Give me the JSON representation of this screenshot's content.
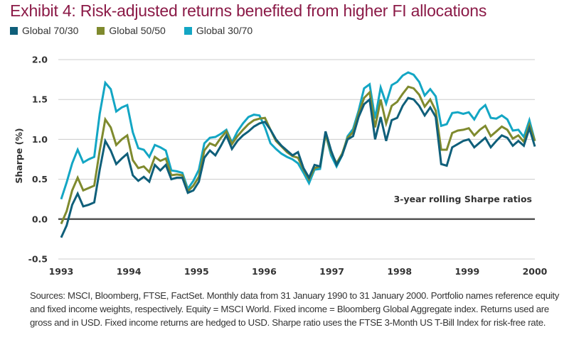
{
  "title": "Exhibit 4: Risk-adjusted returns benefited from higher FI allocations",
  "sources": "Sources: MSCI, Bloomberg, FTSE, FactSet. Monthly data from 31 January 1990 to 31 January 2000. Portfolio names reference equity and fixed income weights, respectively. Equity = MSCI World. Fixed income = Bloomberg Global Aggregate index. Returns used are gross and in USD. Fixed income returns are hedged to USD. Sharpe ratio uses the FTSE 3-Month US T-Bill Index for risk-free rate.",
  "chart_data": {
    "type": "line",
    "title": "Exhibit 4: Risk-adjusted returns benefited from higher FI allocations",
    "xlabel": "",
    "ylabel": "Sharpe (%)",
    "annotation": "3-year rolling Sharpe ratios",
    "ylim": [
      -0.5,
      2.0
    ],
    "xlim": [
      1993,
      2000
    ],
    "yticks": [
      "2.0",
      "1.5",
      "1.0",
      "0.5",
      "0.0",
      "-0.5"
    ],
    "ytick_values": [
      2.0,
      1.5,
      1.0,
      0.5,
      0.0,
      -0.5
    ],
    "xticks": [
      "1993",
      "1994",
      "1995",
      "1996",
      "1997",
      "1998",
      "1999",
      "2000"
    ],
    "xtick_values": [
      1993,
      1994,
      1995,
      1996,
      1997,
      1998,
      1999,
      2000
    ],
    "grid": true,
    "legend": "top-left",
    "x_frequency": "monthly, Jan 1993 to Jan 2000",
    "series": [
      {
        "name": "Global 70/30",
        "color": "#0f5f7a",
        "values": [
          -0.23,
          -0.08,
          0.18,
          0.32,
          0.16,
          0.18,
          0.21,
          0.62,
          0.98,
          0.86,
          0.69,
          0.76,
          0.82,
          0.55,
          0.48,
          0.53,
          0.47,
          0.68,
          0.61,
          0.68,
          0.5,
          0.52,
          0.52,
          0.33,
          0.36,
          0.47,
          0.77,
          0.86,
          0.8,
          0.92,
          1.05,
          0.88,
          0.98,
          1.05,
          1.1,
          1.16,
          1.2,
          1.22,
          1.12,
          1.0,
          0.92,
          0.86,
          0.8,
          0.84,
          0.64,
          0.52,
          0.68,
          0.66,
          1.1,
          0.86,
          0.68,
          0.8,
          1.0,
          1.04,
          1.28,
          1.44,
          1.5,
          1.0,
          1.28,
          0.98,
          1.24,
          1.27,
          1.42,
          1.52,
          1.5,
          1.42,
          1.3,
          1.4,
          1.28,
          0.69,
          0.67,
          0.9,
          0.94,
          0.98,
          1.0,
          0.9,
          0.96,
          1.02,
          0.9,
          0.98,
          1.05,
          1.02,
          0.92,
          0.98,
          0.92,
          1.14,
          0.91
        ]
      },
      {
        "name": "Global 50/50",
        "color": "#7f8a2e",
        "values": [
          -0.06,
          0.1,
          0.36,
          0.52,
          0.36,
          0.39,
          0.42,
          0.86,
          1.25,
          1.15,
          0.93,
          1.0,
          1.05,
          0.74,
          0.64,
          0.66,
          0.59,
          0.78,
          0.73,
          0.76,
          0.55,
          0.56,
          0.55,
          0.35,
          0.42,
          0.53,
          0.86,
          0.95,
          0.92,
          1.02,
          1.1,
          0.94,
          1.04,
          1.12,
          1.19,
          1.24,
          1.26,
          1.27,
          1.12,
          0.98,
          0.91,
          0.84,
          0.79,
          0.77,
          0.62,
          0.5,
          0.64,
          0.66,
          1.06,
          0.84,
          0.7,
          0.82,
          1.02,
          1.09,
          1.32,
          1.52,
          1.59,
          1.15,
          1.5,
          1.2,
          1.42,
          1.47,
          1.57,
          1.66,
          1.64,
          1.56,
          1.41,
          1.5,
          1.36,
          0.87,
          0.87,
          1.08,
          1.11,
          1.12,
          1.14,
          1.05,
          1.12,
          1.17,
          1.04,
          1.1,
          1.16,
          1.12,
          1.01,
          1.05,
          0.97,
          1.18,
          0.98
        ]
      },
      {
        "name": "Global 30/70",
        "color": "#13a6c4",
        "values": [
          0.25,
          0.46,
          0.7,
          0.87,
          0.71,
          0.75,
          0.78,
          1.32,
          1.71,
          1.63,
          1.35,
          1.4,
          1.43,
          1.09,
          0.89,
          0.87,
          0.78,
          0.93,
          0.9,
          0.86,
          0.61,
          0.6,
          0.58,
          0.38,
          0.48,
          0.62,
          0.95,
          1.02,
          1.03,
          1.07,
          1.12,
          0.96,
          1.1,
          1.2,
          1.28,
          1.31,
          1.3,
          1.15,
          0.95,
          0.88,
          0.82,
          0.78,
          0.75,
          0.7,
          0.58,
          0.45,
          0.62,
          0.63,
          1.07,
          0.8,
          0.66,
          0.8,
          1.04,
          1.13,
          1.36,
          1.64,
          1.69,
          1.26,
          1.65,
          1.45,
          1.68,
          1.72,
          1.8,
          1.84,
          1.81,
          1.72,
          1.55,
          1.63,
          1.54,
          1.17,
          1.19,
          1.33,
          1.34,
          1.32,
          1.34,
          1.25,
          1.37,
          1.43,
          1.27,
          1.26,
          1.3,
          1.25,
          1.11,
          1.12,
          1.03,
          1.24,
          0.98
        ]
      }
    ]
  }
}
